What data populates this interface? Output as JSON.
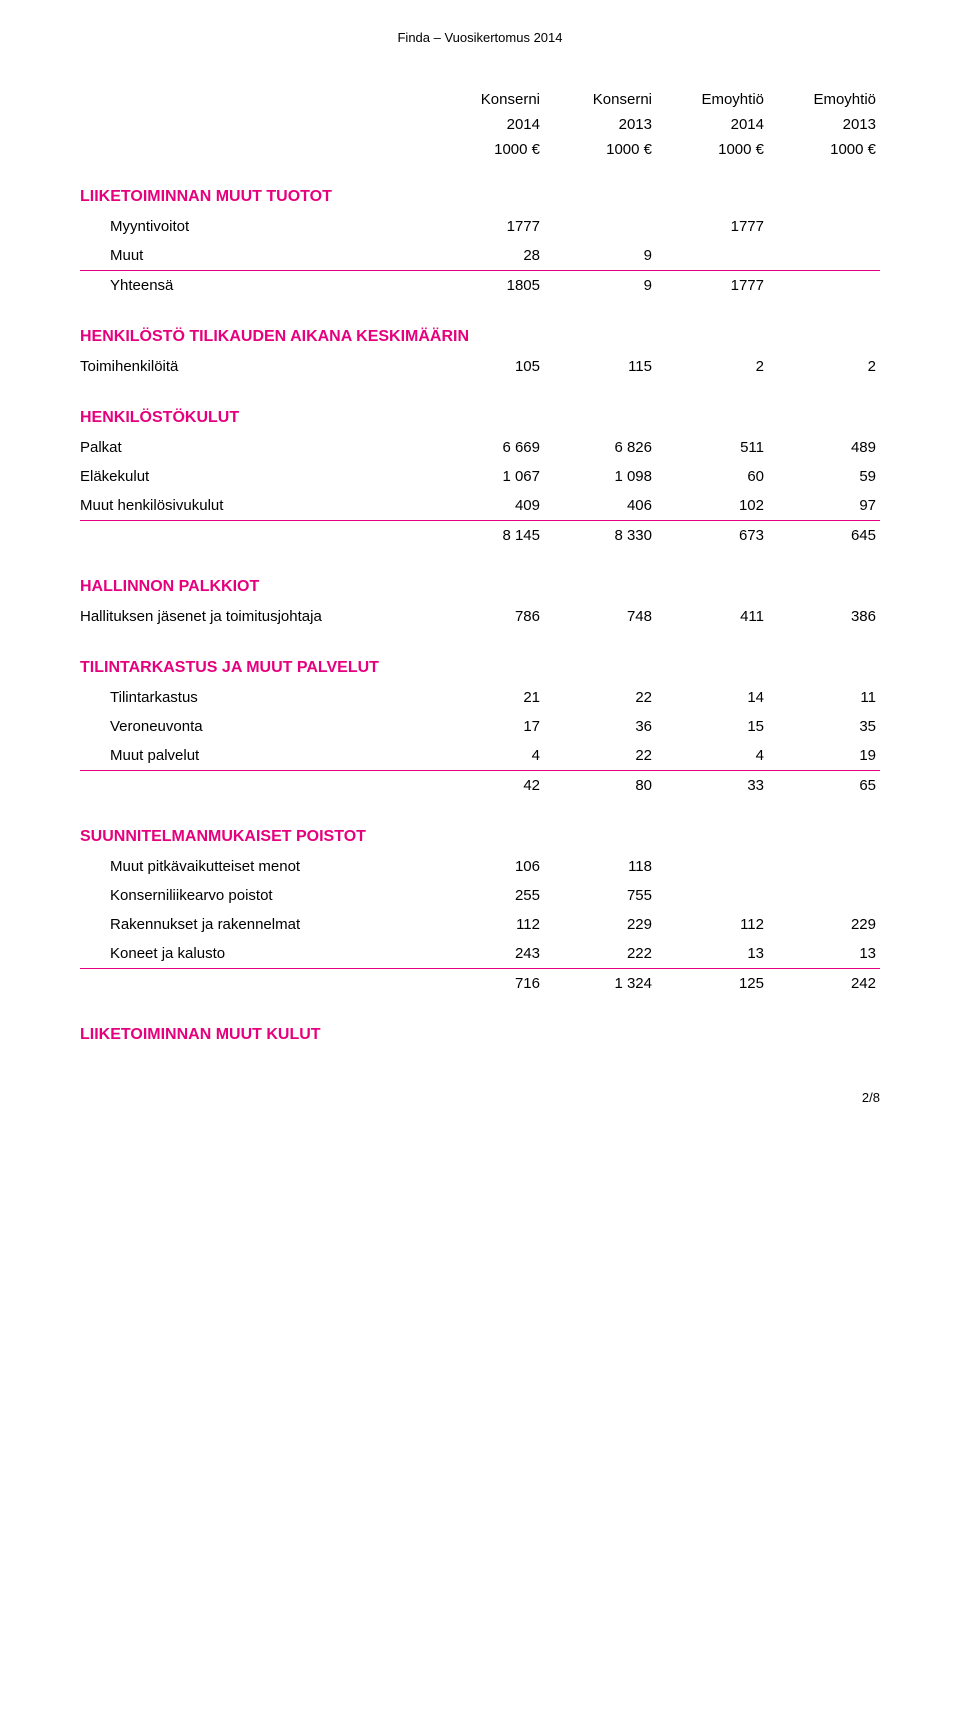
{
  "header": "Finda – Vuosikertomus 2014",
  "columns": {
    "h1": [
      "Konserni",
      "Konserni",
      "Emoyhtiö",
      "Emoyhtiö"
    ],
    "h2": [
      "2014",
      "2013",
      "2014",
      "2013"
    ],
    "h3": [
      "1000 €",
      "1000 €",
      "1000 €",
      "1000 €"
    ]
  },
  "sections": [
    {
      "title": "LIIKETOIMINNAN MUUT TUOTOT",
      "rows": [
        {
          "label": "Myyntivoitot",
          "vals": [
            "1777",
            "",
            "1777",
            ""
          ],
          "indent": true
        },
        {
          "label": "Muut",
          "vals": [
            "28",
            "9",
            "",
            ""
          ],
          "indent": true
        },
        {
          "label": "Yhteensä",
          "vals": [
            "1805",
            "9",
            "1777",
            ""
          ],
          "indent": true,
          "topBorder": true
        }
      ]
    },
    {
      "title": "HENKILÖSTÖ TILIKAUDEN AIKANA KESKIMÄÄRIN",
      "rows": [
        {
          "label": "Toimihenkilöitä",
          "vals": [
            "105",
            "115",
            "2",
            "2"
          ],
          "indent": false
        }
      ]
    },
    {
      "title": "HENKILÖSTÖKULUT",
      "rows": [
        {
          "label": "Palkat",
          "vals": [
            "6 669",
            "6 826",
            "511",
            "489"
          ],
          "indent": false
        },
        {
          "label": "Eläkekulut",
          "vals": [
            "1 067",
            "1 098",
            "60",
            "59"
          ],
          "indent": false
        },
        {
          "label": "Muut henkilösivukulut",
          "vals": [
            "409",
            "406",
            "102",
            "97"
          ],
          "indent": false
        },
        {
          "label": "",
          "vals": [
            "8 145",
            "8 330",
            "673",
            "645"
          ],
          "indent": false,
          "topBorder": true
        }
      ]
    },
    {
      "title": "HALLINNON PALKKIOT",
      "rows": [
        {
          "label": "Hallituksen jäsenet ja toimitusjohtaja",
          "vals": [
            "786",
            "748",
            "411",
            "386"
          ],
          "indent": false
        }
      ]
    },
    {
      "title": "TILINTARKASTUS JA MUUT PALVELUT",
      "rows": [
        {
          "label": "Tilintarkastus",
          "vals": [
            "21",
            "22",
            "14",
            "11"
          ],
          "indent": true
        },
        {
          "label": "Veroneuvonta",
          "vals": [
            "17",
            "36",
            "15",
            "35"
          ],
          "indent": true
        },
        {
          "label": "Muut palvelut",
          "vals": [
            "4",
            "22",
            "4",
            "19"
          ],
          "indent": true
        },
        {
          "label": "",
          "vals": [
            "42",
            "80",
            "33",
            "65"
          ],
          "indent": true,
          "topBorder": true
        }
      ]
    },
    {
      "title": "SUUNNITELMANMUKAISET POISTOT",
      "rows": [
        {
          "label": "Muut pitkävaikutteiset menot",
          "vals": [
            "106",
            "118",
            "",
            ""
          ],
          "indent": true
        },
        {
          "label": "Konserniliikearvo poistot",
          "vals": [
            "255",
            "755",
            "",
            ""
          ],
          "indent": true
        },
        {
          "label": "Rakennukset ja rakennelmat",
          "vals": [
            "112",
            "229",
            "112",
            "229"
          ],
          "indent": true
        },
        {
          "label": "Koneet ja kalusto",
          "vals": [
            "243",
            "222",
            "13",
            "13"
          ],
          "indent": true
        },
        {
          "label": "",
          "vals": [
            "716",
            "1 324",
            "125",
            "242"
          ],
          "indent": true,
          "topBorder": true
        }
      ]
    },
    {
      "title": "LIIKETOIMINNAN MUUT KULUT",
      "rows": []
    }
  ],
  "footer": "2/8",
  "accent_color": "#e6007e"
}
